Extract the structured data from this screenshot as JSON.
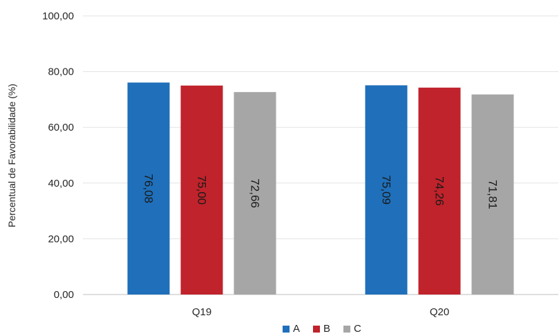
{
  "chart_data": {
    "type": "bar",
    "categories": [
      "Q19",
      "Q20"
    ],
    "series": [
      {
        "name": "A",
        "values": [
          76.08,
          75.09
        ],
        "labels": [
          "76,08",
          "75,09"
        ],
        "color": "#1f6fba"
      },
      {
        "name": "B",
        "values": [
          75.0,
          74.26
        ],
        "labels": [
          "75,00",
          "74,26"
        ],
        "color": "#c0232b"
      },
      {
        "name": "C",
        "values": [
          72.66,
          71.81
        ],
        "labels": [
          "72,66",
          "71,81"
        ],
        "color": "#a6a6a6"
      }
    ],
    "ylabel": "Percentual de Favorabilidade (%)",
    "ylim": [
      0,
      100
    ],
    "yticks": [
      0,
      20,
      40,
      60,
      80,
      100
    ],
    "ytick_labels": [
      "0,00",
      "20,00",
      "40,00",
      "60,00",
      "80,00",
      "100,00"
    ],
    "grid": true,
    "legend": "bottom-center"
  }
}
